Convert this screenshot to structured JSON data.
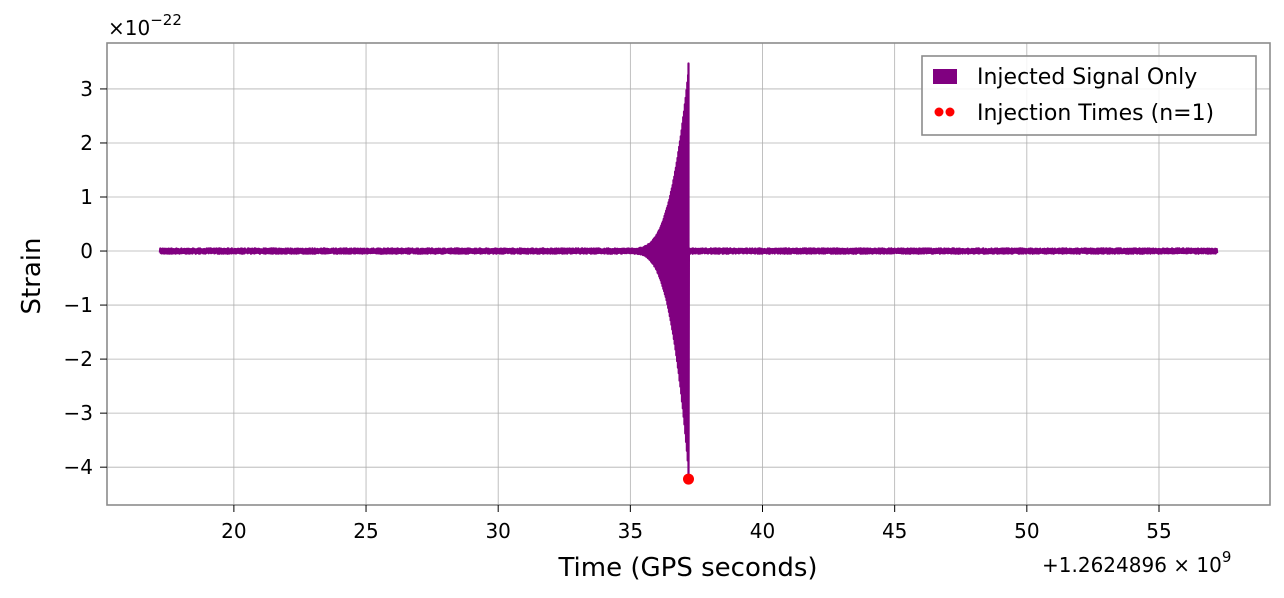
{
  "chart_data": {
    "type": "line",
    "xlabel": "Time (GPS seconds)",
    "ylabel": "Strain",
    "x_offset_label": "+1.2624896 × 10",
    "x_offset_exp": "9",
    "y_scale_label": "×10",
    "y_scale_exp": "−22",
    "xlim": [
      15.2,
      59.2
    ],
    "ylim": [
      -4.7,
      3.85
    ],
    "x_ticks": [
      20,
      25,
      30,
      35,
      40,
      45,
      50,
      55
    ],
    "x_tick_labels": [
      "20",
      "25",
      "30",
      "35",
      "40",
      "45",
      "50",
      "55"
    ],
    "y_ticks": [
      3,
      2,
      1,
      0,
      -1,
      -2,
      -3,
      -4
    ],
    "y_tick_labels": [
      "3",
      "2",
      "1",
      "0",
      "−1",
      "−2",
      "−3",
      "−4"
    ],
    "grid": true,
    "legend_position": "top-right",
    "series": [
      {
        "name": "Injected Signal Only",
        "kind": "line",
        "color": "#800080",
        "x_range": [
          17.2,
          57.2
        ],
        "noise_amplitude": 0.05,
        "burst": {
          "peak_time": 37.2,
          "start_time": 35.0,
          "max_positive": 3.47,
          "min_negative": -4.22
        }
      },
      {
        "name": "Injection Times (n=1)",
        "kind": "scatter",
        "color": "#ff0000",
        "points": [
          {
            "x": 37.2,
            "y": -4.22
          }
        ]
      }
    ]
  }
}
